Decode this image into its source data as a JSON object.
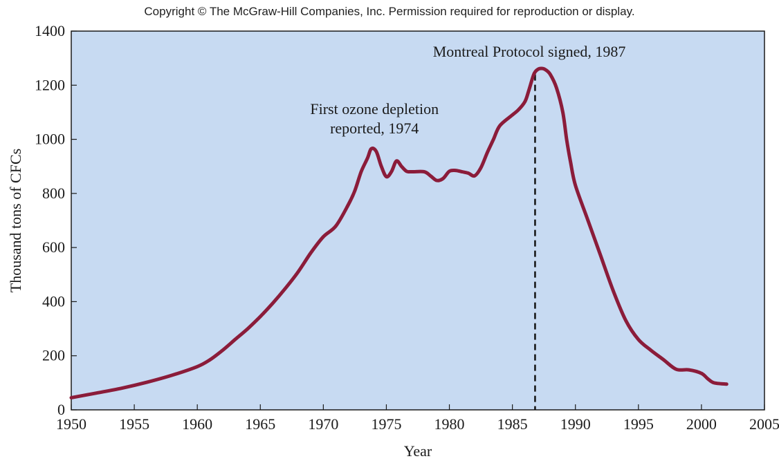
{
  "copyright": "Copyright © The McGraw-Hill Companies, Inc. Permission required for reproduction or display.",
  "colors": {
    "plot_background": "#c7daf2",
    "line": "#8b1c3a",
    "axis": "#1a1a1a",
    "marker": "#111111"
  },
  "chart_data": {
    "type": "line",
    "xlabel": "Year",
    "ylabel": "Thousand tons of CFCs",
    "xlim": [
      1950,
      2005
    ],
    "ylim": [
      0,
      1400
    ],
    "xticks": [
      1950,
      1955,
      1960,
      1965,
      1970,
      1975,
      1980,
      1985,
      1990,
      1995,
      2000,
      2005
    ],
    "yticks": [
      0,
      200,
      400,
      600,
      800,
      1000,
      1200,
      1400
    ],
    "grid": false,
    "series": [
      {
        "x": [
          1950,
          1952,
          1954,
          1956,
          1958,
          1960,
          1961,
          1962,
          1963,
          1964,
          1965,
          1966,
          1967,
          1968,
          1969,
          1970,
          1971,
          1972,
          1972.5,
          1973,
          1973.5,
          1973.8,
          1974.2,
          1974.6,
          1975,
          1975.4,
          1975.8,
          1976.2,
          1976.6,
          1977,
          1978,
          1978.5,
          1979,
          1979.5,
          1980,
          1980.5,
          1981,
          1981.5,
          1982,
          1982.5,
          1983,
          1983.5,
          1984,
          1985,
          1985.5,
          1986,
          1986.3,
          1986.7,
          1987,
          1987.3,
          1987.6,
          1988,
          1988.5,
          1989,
          1989.3,
          1989.6,
          1990,
          1991,
          1992,
          1993,
          1994,
          1995,
          1996,
          1997,
          1998,
          1999,
          2000,
          2000.5,
          2001,
          2002
        ],
        "values": [
          45,
          62,
          80,
          102,
          128,
          160,
          185,
          220,
          260,
          300,
          345,
          395,
          450,
          510,
          580,
          640,
          680,
          760,
          810,
          880,
          930,
          965,
          955,
          900,
          862,
          880,
          920,
          900,
          882,
          880,
          880,
          865,
          848,
          855,
          882,
          885,
          880,
          875,
          865,
          895,
          950,
          1000,
          1050,
          1090,
          1110,
          1140,
          1180,
          1240,
          1258,
          1262,
          1258,
          1240,
          1190,
          1100,
          1000,
          920,
          830,
          700,
          570,
          440,
          330,
          260,
          220,
          185,
          150,
          148,
          135,
          115,
          100,
          95
        ]
      }
    ],
    "annotations": [
      {
        "lines": [
          "First ozone depletion",
          "reported, 1974"
        ],
        "x": 1974
      },
      {
        "lines": [
          "Montreal Protocol signed, 1987"
        ],
        "x": 1987,
        "vline_x": 1986.8,
        "style": "dashed"
      }
    ]
  }
}
